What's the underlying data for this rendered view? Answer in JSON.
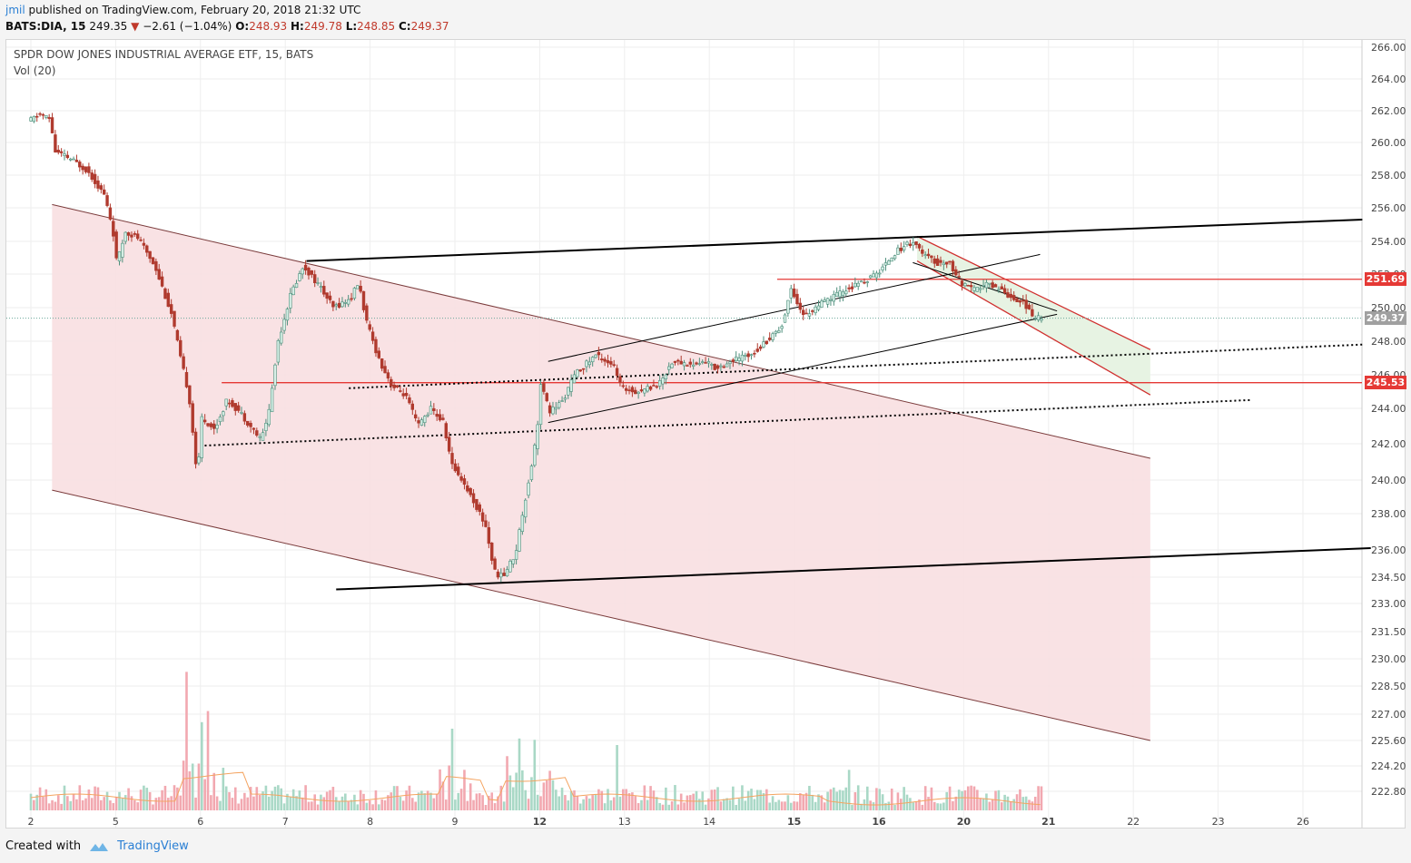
{
  "header": {
    "user": "jmil",
    "published": "published on TradingView.com, February 20, 2018 21:32 UTC",
    "symbol": "BATS:DIA, 15",
    "last": "249.35",
    "change_arrow": "▼",
    "change": "−2.61 (−1.04%)",
    "o_label": "O:",
    "o": "248.93",
    "h_label": "H:",
    "h": "249.78",
    "l_label": "L:",
    "l": "248.85",
    "c_label": "C:",
    "c": "249.37"
  },
  "legend": {
    "title": "SPDR DOW JONES INDUSTRIAL AVERAGE ETF, 15, BATS",
    "volume": "Vol (20)"
  },
  "price_tags": [
    {
      "label": "251.69",
      "value": 251.69,
      "color": "#e53935"
    },
    {
      "label": "249.37",
      "value": 249.37,
      "color": "#a0a0a0"
    },
    {
      "label": "245.53",
      "value": 245.53,
      "color": "#e53935"
    }
  ],
  "footer": {
    "created_with": "Created with",
    "brand": "TradingView"
  },
  "colors": {
    "up": "#4e9a86",
    "down": "#c0392b",
    "channel_fill": "#f8dfe1",
    "green_fill": "#e7f3e3",
    "hline": "#e53935"
  },
  "chart_data": {
    "type": "candlestick",
    "title": "SPDR DOW JONES INDUSTRIAL AVERAGE ETF, 15, BATS",
    "y_ticks": [
      {
        "label": "266.00",
        "v": 266
      },
      {
        "label": "264.00",
        "v": 264
      },
      {
        "label": "262.00",
        "v": 262
      },
      {
        "label": "260.00",
        "v": 260
      },
      {
        "label": "258.00",
        "v": 258
      },
      {
        "label": "256.00",
        "v": 256
      },
      {
        "label": "254.00",
        "v": 254
      },
      {
        "label": "252.00",
        "v": 252
      },
      {
        "label": "250.00",
        "v": 250
      },
      {
        "label": "248.00",
        "v": 248
      },
      {
        "label": "246.00",
        "v": 246
      },
      {
        "label": "244.00",
        "v": 244
      },
      {
        "label": "242.00",
        "v": 242
      },
      {
        "label": "240.00",
        "v": 240
      },
      {
        "label": "238.00",
        "v": 238
      },
      {
        "label": "236.00",
        "v": 236
      },
      {
        "label": "234.50",
        "v": 234.5
      },
      {
        "label": "233.00",
        "v": 233
      },
      {
        "label": "231.50",
        "v": 231.5
      },
      {
        "label": "230.00",
        "v": 230
      },
      {
        "label": "228.50",
        "v": 228.5
      },
      {
        "label": "227.00",
        "v": 227
      },
      {
        "label": "225.60",
        "v": 225.6
      },
      {
        "label": "224.20",
        "v": 224.2
      },
      {
        "label": "222.80",
        "v": 222.8
      }
    ],
    "x_ticks": [
      {
        "label": "2",
        "i": 0
      },
      {
        "label": "5",
        "i": 1
      },
      {
        "label": "6",
        "i": 2
      },
      {
        "label": "7",
        "i": 3
      },
      {
        "label": "8",
        "i": 4
      },
      {
        "label": "9",
        "i": 5
      },
      {
        "label": "12",
        "i": 6
      },
      {
        "label": "13",
        "i": 7
      },
      {
        "label": "14",
        "i": 8
      },
      {
        "label": "15",
        "i": 9
      },
      {
        "label": "16",
        "i": 10
      },
      {
        "label": "20",
        "i": 11
      },
      {
        "label": "21",
        "i": 12
      },
      {
        "label": "22",
        "i": 13
      },
      {
        "label": "23",
        "i": 14
      },
      {
        "label": "26",
        "i": 15
      }
    ],
    "price_path": [
      [
        0.0,
        261.3
      ],
      [
        0.15,
        261.8
      ],
      [
        0.28,
        261.4
      ],
      [
        0.3,
        259.5
      ],
      [
        0.5,
        259.0
      ],
      [
        0.7,
        258.3
      ],
      [
        0.9,
        256.8
      ],
      [
        1.0,
        254.8
      ],
      [
        1.05,
        252.6
      ],
      [
        1.15,
        254.6
      ],
      [
        1.3,
        254.2
      ],
      [
        1.5,
        252.5
      ],
      [
        1.7,
        249.5
      ],
      [
        1.8,
        247.0
      ],
      [
        1.9,
        244.8
      ],
      [
        2.0,
        240.0
      ],
      [
        2.05,
        243.5
      ],
      [
        2.2,
        242.8
      ],
      [
        2.35,
        244.5
      ],
      [
        2.5,
        243.8
      ],
      [
        2.75,
        242.2
      ],
      [
        2.85,
        244.0
      ],
      [
        2.95,
        248.0
      ],
      [
        3.1,
        250.8
      ],
      [
        3.25,
        252.5
      ],
      [
        3.45,
        251.2
      ],
      [
        3.6,
        250.0
      ],
      [
        3.8,
        250.5
      ],
      [
        3.9,
        251.5
      ],
      [
        4.0,
        249.0
      ],
      [
        4.15,
        246.8
      ],
      [
        4.3,
        245.3
      ],
      [
        4.45,
        244.8
      ],
      [
        4.6,
        243.0
      ],
      [
        4.75,
        244.0
      ],
      [
        4.9,
        243.2
      ],
      [
        5.0,
        240.8
      ],
      [
        5.1,
        240.2
      ],
      [
        5.25,
        238.8
      ],
      [
        5.4,
        237.3
      ],
      [
        5.5,
        234.8
      ],
      [
        5.6,
        234.5
      ],
      [
        5.75,
        235.8
      ],
      [
        5.9,
        239.8
      ],
      [
        6.0,
        242.5
      ],
      [
        6.05,
        245.5
      ],
      [
        6.15,
        243.8
      ],
      [
        6.3,
        244.4
      ],
      [
        6.45,
        246.0
      ],
      [
        6.7,
        247.2
      ],
      [
        6.9,
        246.6
      ],
      [
        7.0,
        245.2
      ],
      [
        7.2,
        245.0
      ],
      [
        7.45,
        245.5
      ],
      [
        7.6,
        246.8
      ],
      [
        7.85,
        246.6
      ],
      [
        8.0,
        246.8
      ],
      [
        8.1,
        246.4
      ],
      [
        8.25,
        246.7
      ],
      [
        8.4,
        247.0
      ],
      [
        8.5,
        247.2
      ],
      [
        8.6,
        247.5
      ],
      [
        8.75,
        248.2
      ],
      [
        8.9,
        249.0
      ],
      [
        9.0,
        251.2
      ],
      [
        9.1,
        250.0
      ],
      [
        9.15,
        249.5
      ],
      [
        9.35,
        250.2
      ],
      [
        9.55,
        250.8
      ],
      [
        9.75,
        251.3
      ],
      [
        9.95,
        251.8
      ],
      [
        10.05,
        252.2
      ],
      [
        10.2,
        253.2
      ],
      [
        10.35,
        253.8
      ],
      [
        10.45,
        254.0
      ],
      [
        10.55,
        253.2
      ],
      [
        10.75,
        252.6
      ],
      [
        10.85,
        252.8
      ],
      [
        11.0,
        251.5
      ],
      [
        11.15,
        251.0
      ],
      [
        11.3,
        251.4
      ],
      [
        11.45,
        251.2
      ],
      [
        11.6,
        250.6
      ],
      [
        11.75,
        250.3
      ],
      [
        11.85,
        249.4
      ],
      [
        11.95,
        249.37
      ]
    ],
    "volume": {
      "baseline_label": "Vol (20)",
      "spikes": [
        {
          "i": 1.85,
          "v": 212
        },
        {
          "i": 2.1,
          "v": 152
        },
        {
          "i": 2.0,
          "v": 135
        },
        {
          "i": 4.95,
          "v": 125
        },
        {
          "i": 5.75,
          "v": 110
        },
        {
          "i": 5.95,
          "v": 108
        },
        {
          "i": 6.9,
          "v": 100
        },
        {
          "i": 9.65,
          "v": 62
        }
      ]
    },
    "annotations": {
      "channel": {
        "upper": [
          [
            0.25,
            256.2
          ],
          [
            13.2,
            241.2
          ]
        ],
        "lower": [
          [
            0.25,
            239.4
          ],
          [
            13.2,
            225.6
          ]
        ]
      },
      "trendlines": [
        {
          "from": [
            3.25,
            252.8
          ],
          "to": [
            15.7,
            255.3
          ],
          "style": "thick"
        },
        {
          "from": [
            3.6,
            233.8
          ],
          "to": [
            15.8,
            236.1
          ],
          "style": "thick"
        },
        {
          "from": [
            6.1,
            246.8
          ],
          "to": [
            11.9,
            253.2
          ],
          "style": "thin"
        },
        {
          "from": [
            6.1,
            243.2
          ],
          "to": [
            12.1,
            249.6
          ],
          "style": "thin"
        },
        {
          "from": [
            2.05,
            241.9
          ],
          "to": [
            14.4,
            244.5
          ],
          "style": "dotted"
        },
        {
          "from": [
            3.75,
            245.2
          ],
          "to": [
            15.7,
            247.8
          ],
          "style": "dotted"
        },
        {
          "from": [
            10.4,
            252.7
          ],
          "to": [
            12.1,
            249.8
          ],
          "style": "thin"
        }
      ],
      "down_channel": {
        "upper": [
          [
            10.45,
            254.3
          ],
          [
            13.2,
            247.5
          ]
        ],
        "lower": [
          [
            10.45,
            252.8
          ],
          [
            13.2,
            244.8
          ]
        ]
      },
      "hlines": [
        {
          "value": 251.69,
          "from": 8.8,
          "to": 15.8
        },
        {
          "value": 245.53,
          "from": 2.25,
          "to": 15.8
        }
      ]
    }
  }
}
